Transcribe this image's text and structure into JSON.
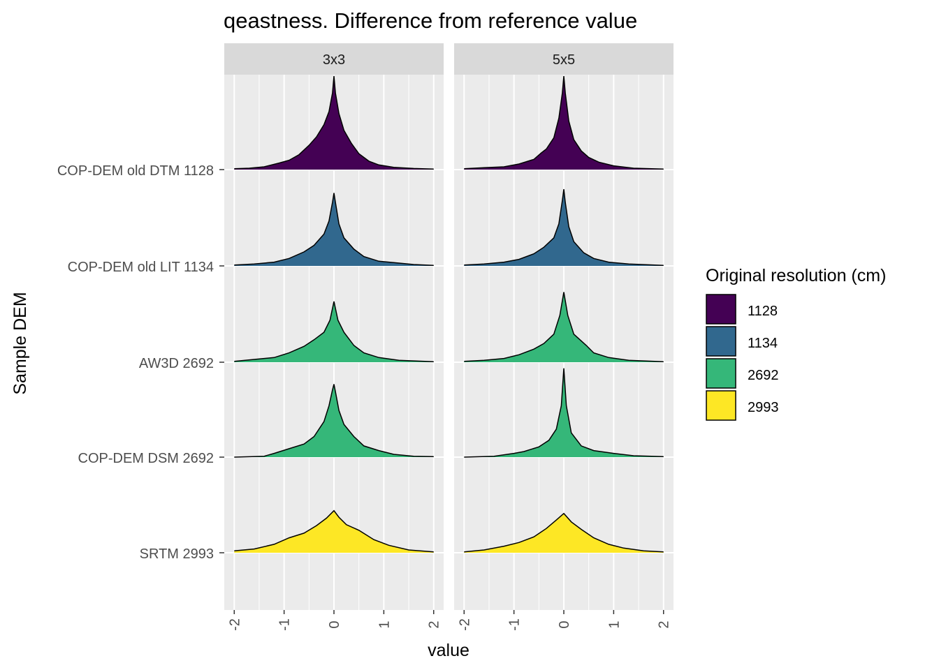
{
  "chart_data": {
    "type": "area",
    "subtype": "ridgeline-density",
    "title": "qeastness. Difference from reference value",
    "xlabel": "value",
    "ylabel": "Sample DEM",
    "xlim": [
      -2.2,
      2.2
    ],
    "x_ticks": [
      -2,
      -1,
      0,
      1,
      2
    ],
    "x_tick_labels": [
      "-2",
      "-1",
      "0",
      "1",
      "2"
    ],
    "x_tick_label_rotation": "vertical",
    "grid": true,
    "panel_background": "#ebebeb",
    "strip_background": "#d9d9d9",
    "facets": [
      "3x3",
      "5x5"
    ],
    "categories": [
      "COP-DEM old DTM 1128",
      "COP-DEM old LIT 1134",
      "AW3D 2692",
      "COP-DEM DSM 2692",
      "SRTM 2993"
    ],
    "category_resolution": [
      "1128",
      "1134",
      "2692",
      "2692",
      "2993"
    ],
    "legend": {
      "title": "Original resolution (cm)",
      "position": "right",
      "entries": [
        {
          "label": "1128",
          "color": "#440154"
        },
        {
          "label": "1134",
          "color": "#31688e"
        },
        {
          "label": "2692",
          "color": "#35b779"
        },
        {
          "label": "2993",
          "color": "#fde725"
        }
      ]
    },
    "series": [
      {
        "facet": "3x3",
        "ridges": [
          {
            "category": "COP-DEM old DTM 1128",
            "color": "#440154",
            "points": [
              [
                -2,
                0.01
              ],
              [
                -1.7,
                0.015
              ],
              [
                -1.4,
                0.03
              ],
              [
                -1.1,
                0.07
              ],
              [
                -0.9,
                0.1
              ],
              [
                -0.7,
                0.16
              ],
              [
                -0.5,
                0.26
              ],
              [
                -0.35,
                0.35
              ],
              [
                -0.2,
                0.48
              ],
              [
                -0.1,
                0.62
              ],
              [
                -0.03,
                0.82
              ],
              [
                0,
                1.0
              ],
              [
                0.03,
                0.82
              ],
              [
                0.1,
                0.6
              ],
              [
                0.2,
                0.42
              ],
              [
                0.35,
                0.28
              ],
              [
                0.5,
                0.17
              ],
              [
                0.7,
                0.09
              ],
              [
                0.9,
                0.05
              ],
              [
                1.2,
                0.025
              ],
              [
                1.6,
                0.012
              ],
              [
                2,
                0.005
              ]
            ]
          },
          {
            "category": "COP-DEM old LIT 1134",
            "color": "#31688e",
            "points": [
              [
                -2,
                0.01
              ],
              [
                -1.6,
                0.02
              ],
              [
                -1.2,
                0.04
              ],
              [
                -0.9,
                0.08
              ],
              [
                -0.6,
                0.15
              ],
              [
                -0.4,
                0.22
              ],
              [
                -0.2,
                0.34
              ],
              [
                -0.1,
                0.48
              ],
              [
                -0.03,
                0.68
              ],
              [
                0,
                0.78
              ],
              [
                0.03,
                0.68
              ],
              [
                0.1,
                0.45
              ],
              [
                0.2,
                0.3
              ],
              [
                0.4,
                0.18
              ],
              [
                0.6,
                0.1
              ],
              [
                0.9,
                0.05
              ],
              [
                1.2,
                0.035
              ],
              [
                1.6,
                0.015
              ],
              [
                2,
                0.005
              ]
            ]
          },
          {
            "category": "AW3D 2692",
            "color": "#35b779",
            "points": [
              [
                -2,
                0.01
              ],
              [
                -1.6,
                0.03
              ],
              [
                -1.2,
                0.05
              ],
              [
                -0.9,
                0.1
              ],
              [
                -0.6,
                0.17
              ],
              [
                -0.4,
                0.24
              ],
              [
                -0.2,
                0.32
              ],
              [
                -0.08,
                0.45
              ],
              [
                0,
                0.65
              ],
              [
                0.08,
                0.45
              ],
              [
                0.2,
                0.32
              ],
              [
                0.4,
                0.18
              ],
              [
                0.6,
                0.1
              ],
              [
                0.9,
                0.05
              ],
              [
                1.3,
                0.02
              ],
              [
                2,
                0.005
              ]
            ]
          },
          {
            "category": "COP-DEM DSM 2692",
            "color": "#35b779",
            "points": [
              [
                -2,
                0.0
              ],
              [
                -1.4,
                0.01
              ],
              [
                -1.2,
                0.04
              ],
              [
                -0.9,
                0.09
              ],
              [
                -0.6,
                0.14
              ],
              [
                -0.4,
                0.22
              ],
              [
                -0.2,
                0.38
              ],
              [
                -0.1,
                0.55
              ],
              [
                -0.03,
                0.72
              ],
              [
                0,
                0.78
              ],
              [
                0.03,
                0.7
              ],
              [
                0.1,
                0.5
              ],
              [
                0.2,
                0.35
              ],
              [
                0.4,
                0.22
              ],
              [
                0.6,
                0.12
              ],
              [
                0.9,
                0.07
              ],
              [
                1.2,
                0.03
              ],
              [
                1.6,
                0.01
              ],
              [
                2,
                0.005
              ]
            ]
          },
          {
            "category": "SRTM 2993",
            "color": "#fde725",
            "points": [
              [
                -2,
                0.02
              ],
              [
                -1.6,
                0.04
              ],
              [
                -1.2,
                0.09
              ],
              [
                -0.9,
                0.16
              ],
              [
                -0.6,
                0.21
              ],
              [
                -0.35,
                0.29
              ],
              [
                -0.15,
                0.37
              ],
              [
                0,
                0.45
              ],
              [
                0.1,
                0.38
              ],
              [
                0.25,
                0.3
              ],
              [
                0.5,
                0.24
              ],
              [
                0.8,
                0.14
              ],
              [
                1.1,
                0.08
              ],
              [
                1.5,
                0.03
              ],
              [
                2,
                0.01
              ]
            ]
          }
        ]
      },
      {
        "facet": "5x5",
        "ridges": [
          {
            "category": "COP-DEM old DTM 1128",
            "color": "#440154",
            "points": [
              [
                -2,
                0.01
              ],
              [
                -1.6,
                0.02
              ],
              [
                -1.2,
                0.03
              ],
              [
                -0.9,
                0.06
              ],
              [
                -0.6,
                0.11
              ],
              [
                -0.45,
                0.18
              ],
              [
                -0.35,
                0.22
              ],
              [
                -0.2,
                0.34
              ],
              [
                -0.1,
                0.55
              ],
              [
                -0.03,
                0.82
              ],
              [
                0,
                1.0
              ],
              [
                0.03,
                0.82
              ],
              [
                0.1,
                0.52
              ],
              [
                0.2,
                0.32
              ],
              [
                0.35,
                0.2
              ],
              [
                0.5,
                0.13
              ],
              [
                0.7,
                0.08
              ],
              [
                1.0,
                0.04
              ],
              [
                1.4,
                0.015
              ],
              [
                2,
                0.005
              ]
            ]
          },
          {
            "category": "COP-DEM old LIT 1134",
            "color": "#31688e",
            "points": [
              [
                -2,
                0.01
              ],
              [
                -1.6,
                0.02
              ],
              [
                -1.2,
                0.04
              ],
              [
                -0.9,
                0.07
              ],
              [
                -0.6,
                0.13
              ],
              [
                -0.4,
                0.2
              ],
              [
                -0.2,
                0.3
              ],
              [
                -0.1,
                0.45
              ],
              [
                -0.03,
                0.7
              ],
              [
                0,
                0.82
              ],
              [
                0.03,
                0.68
              ],
              [
                0.1,
                0.42
              ],
              [
                0.2,
                0.26
              ],
              [
                0.4,
                0.14
              ],
              [
                0.6,
                0.08
              ],
              [
                0.9,
                0.04
              ],
              [
                1.3,
                0.02
              ],
              [
                2,
                0.005
              ]
            ]
          },
          {
            "category": "AW3D 2692",
            "color": "#35b779",
            "points": [
              [
                -2,
                0.01
              ],
              [
                -1.6,
                0.02
              ],
              [
                -1.2,
                0.04
              ],
              [
                -0.9,
                0.08
              ],
              [
                -0.6,
                0.14
              ],
              [
                -0.4,
                0.2
              ],
              [
                -0.2,
                0.3
              ],
              [
                -0.08,
                0.5
              ],
              [
                0,
                0.75
              ],
              [
                0.08,
                0.5
              ],
              [
                0.2,
                0.3
              ],
              [
                0.45,
                0.18
              ],
              [
                0.6,
                0.1
              ],
              [
                0.9,
                0.05
              ],
              [
                1.3,
                0.02
              ],
              [
                2,
                0.005
              ]
            ]
          },
          {
            "category": "COP-DEM DSM 2692",
            "color": "#35b779",
            "points": [
              [
                -2,
                0.0
              ],
              [
                -1.4,
                0.01
              ],
              [
                -1.0,
                0.04
              ],
              [
                -0.8,
                0.06
              ],
              [
                -0.5,
                0.11
              ],
              [
                -0.3,
                0.18
              ],
              [
                -0.15,
                0.3
              ],
              [
                -0.05,
                0.55
              ],
              [
                0,
                0.95
              ],
              [
                0.05,
                0.55
              ],
              [
                0.15,
                0.26
              ],
              [
                0.35,
                0.12
              ],
              [
                0.6,
                0.07
              ],
              [
                1.0,
                0.04
              ],
              [
                1.4,
                0.015
              ],
              [
                2,
                0.005
              ]
            ]
          },
          {
            "category": "SRTM 2993",
            "color": "#fde725",
            "points": [
              [
                -2,
                0.01
              ],
              [
                -1.6,
                0.03
              ],
              [
                -1.2,
                0.07
              ],
              [
                -0.9,
                0.11
              ],
              [
                -0.6,
                0.17
              ],
              [
                -0.35,
                0.26
              ],
              [
                -0.15,
                0.35
              ],
              [
                0,
                0.42
              ],
              [
                0.15,
                0.33
              ],
              [
                0.35,
                0.25
              ],
              [
                0.6,
                0.16
              ],
              [
                0.9,
                0.09
              ],
              [
                1.2,
                0.05
              ],
              [
                1.6,
                0.02
              ],
              [
                2,
                0.01
              ]
            ]
          }
        ]
      }
    ]
  }
}
